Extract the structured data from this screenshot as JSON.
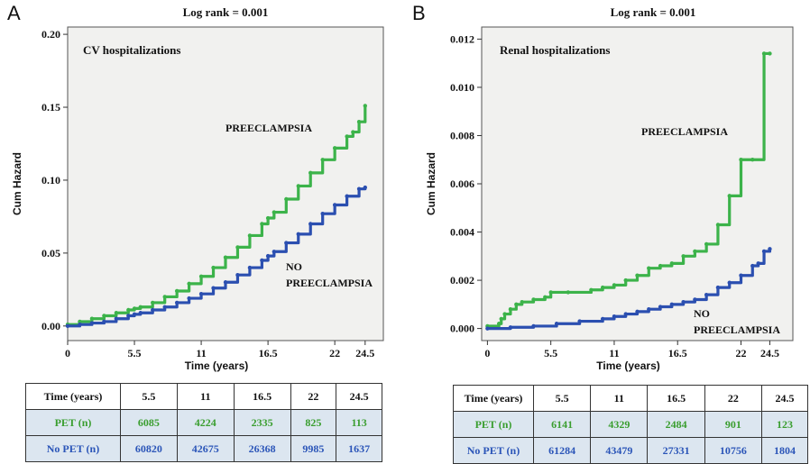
{
  "chart_data": [
    {
      "type": "line",
      "panel_letter": "A",
      "title": "Log rank = 0.001",
      "inner_title": "CV hospitalizations",
      "xlabel": "Time (years)",
      "ylabel": "Cum Hazard",
      "xlim": [
        0,
        26
      ],
      "ylim": [
        -0.01,
        0.205
      ],
      "x_ticks": [
        "0",
        "5.5",
        "11",
        "16.5",
        "22",
        "24.5"
      ],
      "x_tick_values": [
        0,
        5.5,
        11,
        16.5,
        22,
        24.5
      ],
      "y_ticks": [
        "0.00",
        "0.05",
        "0.10",
        "0.15",
        "0.20"
      ],
      "y_tick_values": [
        0,
        0.05,
        0.1,
        0.15,
        0.2
      ],
      "colors": {
        "preeclampsia": "#3cb34a",
        "no_preeclampsia": "#2b4fb0"
      },
      "series": [
        {
          "name": "PREECLAMPSIA",
          "x": [
            0,
            1,
            2,
            3,
            4,
            5,
            5.5,
            6,
            7,
            8,
            9,
            10,
            11,
            12,
            13,
            14,
            15,
            16,
            16.5,
            17,
            18,
            19,
            20,
            21,
            22,
            23,
            23.5,
            24,
            24.5
          ],
          "y": [
            0.001,
            0.003,
            0.005,
            0.007,
            0.009,
            0.011,
            0.012,
            0.013,
            0.016,
            0.02,
            0.024,
            0.029,
            0.034,
            0.04,
            0.047,
            0.054,
            0.062,
            0.07,
            0.074,
            0.078,
            0.087,
            0.096,
            0.105,
            0.114,
            0.122,
            0.13,
            0.133,
            0.14,
            0.151
          ]
        },
        {
          "name": "NO PREECLAMPSIA",
          "x": [
            0,
            1,
            2,
            3,
            4,
            5,
            5.5,
            6,
            7,
            8,
            9,
            10,
            11,
            12,
            13,
            14,
            15,
            16,
            16.5,
            17,
            18,
            19,
            20,
            21,
            22,
            23,
            24,
            24.5
          ],
          "y": [
            0,
            0.001,
            0.002,
            0.003,
            0.005,
            0.007,
            0.008,
            0.009,
            0.011,
            0.013,
            0.016,
            0.019,
            0.022,
            0.026,
            0.03,
            0.035,
            0.04,
            0.045,
            0.048,
            0.051,
            0.057,
            0.063,
            0.07,
            0.077,
            0.083,
            0.089,
            0.094,
            0.095
          ]
        }
      ],
      "labels": {
        "preeclampsia": "PREECLAMPSIA",
        "no_1": "NO",
        "no_2": "PREECLAMPSIA"
      },
      "risk_table": {
        "headers": [
          "Time (years)",
          "5.5",
          "11",
          "16.5",
          "22",
          "24.5"
        ],
        "pet": [
          "PET (n)",
          "6085",
          "4224",
          "2335",
          "825",
          "113"
        ],
        "nopet": [
          "No PET (n)",
          "60820",
          "42675",
          "26368",
          "9985",
          "1637"
        ]
      }
    },
    {
      "type": "line",
      "panel_letter": "B",
      "title": "Log rank = 0.001",
      "inner_title": "Renal hospitalizations",
      "xlabel": "Time (years)",
      "ylabel": "Cum Hazard",
      "xlim": [
        -0.5,
        26.5
      ],
      "ylim": [
        -0.0005,
        0.0125
      ],
      "x_ticks": [
        "0",
        "5.5",
        "11",
        "16.5",
        "22",
        "24.5"
      ],
      "x_tick_values": [
        0,
        5.5,
        11,
        16.5,
        22,
        24.5
      ],
      "y_ticks": [
        "0.000",
        "0.002",
        "0.004",
        "0.006",
        "0.008",
        "0.010",
        "0.012"
      ],
      "y_tick_values": [
        0,
        0.002,
        0.004,
        0.006,
        0.008,
        0.01,
        0.012
      ],
      "colors": {
        "preeclampsia": "#3cb34a",
        "no_preeclampsia": "#2b4fb0"
      },
      "series": [
        {
          "name": "PREECLAMPSIA",
          "x": [
            0,
            1,
            1.2,
            1.5,
            2,
            2.5,
            3,
            4,
            5,
            5.5,
            7,
            9,
            10,
            11,
            12,
            13,
            14,
            15,
            16,
            17,
            18,
            19,
            20,
            21,
            22,
            23,
            24,
            24.5
          ],
          "y": [
            0.0001,
            0.0002,
            0.0004,
            0.0006,
            0.0008,
            0.001,
            0.0011,
            0.0012,
            0.0013,
            0.0015,
            0.0015,
            0.0016,
            0.0017,
            0.0018,
            0.002,
            0.0022,
            0.0025,
            0.0026,
            0.0027,
            0.003,
            0.0032,
            0.0035,
            0.0043,
            0.0055,
            0.007,
            0.007,
            0.0114,
            0.0114
          ]
        },
        {
          "name": "NO PREECLAMPSIA",
          "x": [
            0,
            2,
            4,
            6,
            8,
            10,
            11,
            12,
            13,
            14,
            15,
            16,
            17,
            18,
            19,
            20,
            21,
            22,
            23,
            23.5,
            24,
            24.5
          ],
          "y": [
            0,
            5e-05,
            0.0001,
            0.0002,
            0.0003,
            0.0004,
            0.0005,
            0.0006,
            0.0007,
            0.0008,
            0.0009,
            0.001,
            0.0011,
            0.0012,
            0.0014,
            0.0017,
            0.0019,
            0.0022,
            0.0026,
            0.0027,
            0.0032,
            0.0033
          ]
        }
      ],
      "labels": {
        "preeclampsia": "PREECLAMPSIA",
        "no_1": "NO",
        "no_2": "PREECLAMPSIA"
      },
      "risk_table": {
        "headers": [
          "Time (years)",
          "5.5",
          "11",
          "16.5",
          "22",
          "24.5"
        ],
        "pet": [
          "PET (n)",
          "6141",
          "4329",
          "2484",
          "901",
          "123"
        ],
        "nopet": [
          "No PET (n)",
          "61284",
          "43479",
          "27331",
          "10756",
          "1804"
        ]
      }
    }
  ]
}
